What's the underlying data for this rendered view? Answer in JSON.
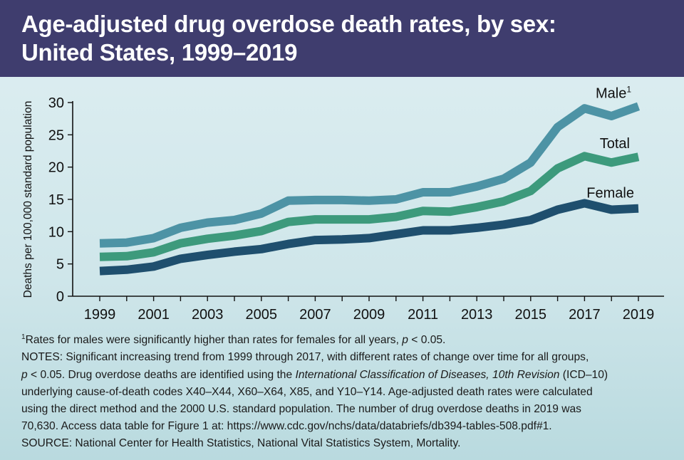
{
  "header": {
    "title_line1": "Age-adjusted drug overdose death rates, by sex:",
    "title_line2": "United States, 1999–2019",
    "background_color": "#3f3d6e"
  },
  "chart_data": {
    "type": "line",
    "x": [
      1999,
      2000,
      2001,
      2002,
      2003,
      2004,
      2005,
      2006,
      2007,
      2008,
      2009,
      2010,
      2011,
      2012,
      2013,
      2014,
      2015,
      2016,
      2017,
      2018,
      2019
    ],
    "xticks": [
      "1999",
      "2001",
      "2003",
      "2005",
      "2007",
      "2009",
      "2011",
      "2013",
      "2015",
      "2017",
      "2019"
    ],
    "yticks": [
      "0",
      "5",
      "10",
      "15",
      "20",
      "25",
      "30"
    ],
    "ylim": [
      0,
      30
    ],
    "xlim": [
      1999,
      2019
    ],
    "ylabel": "Deaths per 100,000 standard population",
    "xlabel": "",
    "grid": false,
    "series": [
      {
        "name": "Male",
        "name_sup": "1",
        "color": "#4d93a5",
        "values": [
          8.2,
          8.3,
          9.0,
          10.6,
          11.4,
          11.8,
          12.8,
          14.8,
          14.9,
          14.9,
          14.8,
          15.0,
          16.1,
          16.1,
          17.0,
          18.2,
          20.7,
          26.2,
          29.1,
          27.9,
          29.4
        ]
      },
      {
        "name": "Total",
        "color": "#3d9a7c",
        "values": [
          6.1,
          6.2,
          6.8,
          8.2,
          8.9,
          9.4,
          10.1,
          11.5,
          11.9,
          11.9,
          11.9,
          12.3,
          13.2,
          13.1,
          13.8,
          14.7,
          16.3,
          19.8,
          21.7,
          20.7,
          21.6
        ]
      },
      {
        "name": "Female",
        "color": "#1f4f6e",
        "values": [
          3.9,
          4.1,
          4.6,
          5.8,
          6.4,
          6.9,
          7.3,
          8.1,
          8.7,
          8.8,
          9.0,
          9.6,
          10.2,
          10.2,
          10.6,
          11.1,
          11.8,
          13.4,
          14.4,
          13.4,
          13.6
        ]
      }
    ]
  },
  "notes": {
    "footnote_sup": "1",
    "footnote": "Rates for males were significantly higher than rates for females for all years, ",
    "footnote_p": "p",
    "footnote_end": " < 0.05.",
    "notes_line1": "NOTES: Significant increasing trend from 1999 through 2017, with different rates of change over time for all groups,",
    "notes_line2_p": "p",
    "notes_line2_a": " < 0.05. Drug overdose deaths are identified using the ",
    "notes_line2_italic": "International Classification of Diseases, 10th Revision",
    "notes_line2_b": " (ICD–10)",
    "notes_line3": "underlying cause-of-death codes X40–X44, X60–X64, X85, and Y10–Y14. Age-adjusted death rates were calculated",
    "notes_line4": "using the direct method and the 2000 U.S. standard population. The number of drug overdose deaths in 2019 was",
    "notes_line5": "70,630. Access data table for Figure 1 at: https://www.cdc.gov/nchs/data/databriefs/db394-tables-508.pdf#1.",
    "source": "SOURCE: National Center for Health Statistics, National Vital Statistics System, Mortality."
  }
}
